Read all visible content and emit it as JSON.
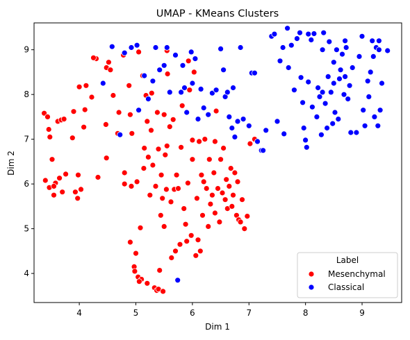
{
  "chart_data": {
    "type": "scatter",
    "title": "UMAP - KMeans Clusters",
    "xlabel": "Dim 1",
    "ylabel": "Dim 2",
    "xlim": [
      3.2,
      9.7
    ],
    "ylim": [
      3.35,
      9.6
    ],
    "xticks": [
      4,
      5,
      6,
      7,
      8,
      9
    ],
    "yticks": [
      4,
      5,
      6,
      7,
      8,
      9
    ],
    "grid": false,
    "legend": {
      "title": "Label",
      "placement": "lower-right"
    },
    "series": [
      {
        "name": "Mesenchymal",
        "color": "#ff0000",
        "points": [
          [
            3.38,
            7.58
          ],
          [
            3.44,
            7.5
          ],
          [
            3.46,
            7.22
          ],
          [
            3.48,
            7.05
          ],
          [
            3.4,
            6.08
          ],
          [
            3.47,
            5.92
          ],
          [
            3.52,
            6.55
          ],
          [
            3.55,
            5.75
          ],
          [
            3.58,
            6.02
          ],
          [
            3.55,
            5.95
          ],
          [
            3.62,
            7.4
          ],
          [
            3.68,
            7.43
          ],
          [
            3.73,
            7.45
          ],
          [
            3.65,
            6.13
          ],
          [
            3.7,
            5.82
          ],
          [
            3.76,
            6.22
          ],
          [
            3.88,
            7.03
          ],
          [
            3.9,
            7.62
          ],
          [
            3.93,
            5.82
          ],
          [
            3.97,
            5.68
          ],
          [
            3.98,
            6.2
          ],
          [
            4.0,
            8.17
          ],
          [
            4.03,
            5.88
          ],
          [
            4.08,
            7.27
          ],
          [
            4.1,
            7.66
          ],
          [
            4.12,
            8.2
          ],
          [
            4.22,
            7.94
          ],
          [
            4.3,
            8.8
          ],
          [
            4.33,
            6.15
          ],
          [
            4.47,
            7.33
          ],
          [
            4.48,
            6.58
          ],
          [
            4.48,
            8.6
          ],
          [
            4.52,
            8.72
          ],
          [
            4.55,
            8.55
          ],
          [
            4.6,
            7.98
          ],
          [
            4.68,
            7.13
          ],
          [
            4.7,
            7.6
          ],
          [
            4.78,
            8.88
          ],
          [
            4.8,
            6.25
          ],
          [
            4.88,
            8.2
          ],
          [
            4.9,
            7.55
          ],
          [
            4.92,
            5.95
          ],
          [
            4.93,
            7.13
          ],
          [
            4.97,
            4.15
          ],
          [
            4.98,
            4.05
          ],
          [
            5.0,
            4.45
          ],
          [
            5.02,
            6.05
          ],
          [
            5.04,
            3.92
          ],
          [
            5.08,
            5.02
          ],
          [
            5.1,
            3.87
          ],
          [
            5.12,
            8.42
          ],
          [
            5.14,
            6.35
          ],
          [
            5.15,
            6.8
          ],
          [
            5.18,
            7.98
          ],
          [
            5.2,
            7.4
          ],
          [
            5.2,
            3.78
          ],
          [
            5.22,
            6.6
          ],
          [
            5.25,
            5.75
          ],
          [
            5.27,
            7.2
          ],
          [
            5.28,
            8.03
          ],
          [
            5.3,
            6.42
          ],
          [
            5.33,
            3.68
          ],
          [
            5.35,
            5.95
          ],
          [
            5.37,
            3.62
          ],
          [
            5.38,
            7.6
          ],
          [
            5.4,
            6.78
          ],
          [
            5.4,
            3.65
          ],
          [
            5.42,
            4.07
          ],
          [
            5.44,
            5.3
          ],
          [
            5.45,
            6.2
          ],
          [
            5.47,
            5.68
          ],
          [
            5.48,
            3.6
          ],
          [
            5.5,
            7.55
          ],
          [
            5.5,
            5.05
          ],
          [
            5.52,
            6.65
          ],
          [
            5.54,
            5.88
          ],
          [
            5.55,
            6.85
          ],
          [
            5.56,
            8.46
          ],
          [
            5.6,
            7.28
          ],
          [
            5.62,
            5.6
          ],
          [
            5.63,
            4.35
          ],
          [
            5.66,
            7.44
          ],
          [
            5.68,
            5.88
          ],
          [
            5.7,
            4.5
          ],
          [
            5.72,
            6.2
          ],
          [
            5.75,
            5.9
          ],
          [
            5.78,
            4.65
          ],
          [
            5.8,
            6.82
          ],
          [
            5.82,
            7.75
          ],
          [
            5.85,
            5.45
          ],
          [
            5.88,
            5.1
          ],
          [
            5.9,
            4.72
          ],
          [
            5.92,
            6.02
          ],
          [
            5.95,
            8.1
          ],
          [
            5.98,
            4.85
          ],
          [
            6.0,
            6.55
          ],
          [
            6.03,
            8.5
          ],
          [
            6.06,
            4.4
          ],
          [
            6.08,
            5.68
          ],
          [
            6.1,
            4.75
          ],
          [
            6.12,
            6.95
          ],
          [
            6.14,
            4.5
          ],
          [
            6.16,
            6.2
          ],
          [
            6.18,
            5.3
          ],
          [
            6.2,
            6.05
          ],
          [
            6.22,
            7.0
          ],
          [
            6.25,
            5.9
          ],
          [
            6.28,
            5.05
          ],
          [
            6.3,
            6.55
          ],
          [
            6.32,
            5.55
          ],
          [
            6.35,
            5.75
          ],
          [
            6.38,
            6.25
          ],
          [
            6.4,
            5.35
          ],
          [
            6.42,
            7.63
          ],
          [
            6.45,
            5.9
          ],
          [
            6.48,
            5.15
          ],
          [
            6.5,
            6.55
          ],
          [
            6.53,
            5.8
          ],
          [
            6.55,
            6.8
          ],
          [
            6.58,
            5.65
          ],
          [
            6.6,
            6.1
          ],
          [
            6.62,
            5.45
          ],
          [
            6.65,
            5.95
          ],
          [
            6.68,
            6.35
          ],
          [
            6.7,
            5.5
          ],
          [
            6.72,
            5.75
          ],
          [
            6.75,
            6.25
          ],
          [
            6.78,
            5.3
          ],
          [
            6.8,
            6.05
          ],
          [
            6.82,
            5.2
          ],
          [
            6.85,
            5.15
          ],
          [
            6.88,
            5.65
          ],
          [
            6.92,
            5.0
          ],
          [
            6.97,
            5.28
          ],
          [
            7.02,
            6.9
          ],
          [
            7.1,
            7.0
          ],
          [
            4.9,
            4.7
          ],
          [
            5.06,
            3.82
          ],
          [
            4.8,
            6.0
          ],
          [
            6.4,
            6.95
          ],
          [
            5.93,
            8.75
          ],
          [
            4.25,
            8.82
          ],
          [
            5.55,
            8.98
          ],
          [
            5.05,
            8.95
          ],
          [
            6.0,
            6.98
          ]
        ]
      },
      {
        "name": "Classical",
        "color": "#0000ff",
        "points": [
          [
            4.42,
            8.25
          ],
          [
            4.58,
            9.07
          ],
          [
            4.72,
            7.1
          ],
          [
            4.8,
            8.93
          ],
          [
            4.92,
            9.05
          ],
          [
            5.02,
            9.1
          ],
          [
            5.05,
            7.65
          ],
          [
            5.15,
            8.42
          ],
          [
            5.22,
            7.9
          ],
          [
            5.3,
            8.3
          ],
          [
            5.35,
            9.05
          ],
          [
            5.42,
            8.55
          ],
          [
            5.5,
            8.65
          ],
          [
            5.55,
            9.05
          ],
          [
            5.6,
            8.05
          ],
          [
            5.7,
            8.88
          ],
          [
            5.74,
            3.85
          ],
          [
            5.8,
            8.05
          ],
          [
            5.83,
            8.65
          ],
          [
            5.86,
            8.15
          ],
          [
            5.9,
            7.6
          ],
          [
            5.98,
            8.95
          ],
          [
            6.0,
            8.25
          ],
          [
            6.05,
            8.8
          ],
          [
            6.1,
            7.45
          ],
          [
            6.15,
            8.12
          ],
          [
            6.2,
            7.7
          ],
          [
            6.28,
            7.55
          ],
          [
            6.35,
            8.03
          ],
          [
            6.42,
            8.1
          ],
          [
            6.5,
            9.02
          ],
          [
            6.55,
            8.55
          ],
          [
            6.58,
            7.95
          ],
          [
            6.62,
            8.05
          ],
          [
            6.65,
            7.5
          ],
          [
            6.7,
            7.25
          ],
          [
            6.72,
            8.15
          ],
          [
            6.75,
            7.05
          ],
          [
            6.8,
            7.4
          ],
          [
            6.85,
            9.05
          ],
          [
            6.9,
            7.45
          ],
          [
            7.0,
            7.3
          ],
          [
            7.05,
            8.48
          ],
          [
            7.15,
            6.95
          ],
          [
            7.22,
            6.75
          ],
          [
            7.3,
            7.2
          ],
          [
            7.4,
            9.3
          ],
          [
            7.45,
            9.35
          ],
          [
            7.5,
            7.4
          ],
          [
            7.55,
            8.75
          ],
          [
            7.6,
            9.05
          ],
          [
            7.62,
            7.12
          ],
          [
            7.68,
            9.48
          ],
          [
            7.7,
            8.6
          ],
          [
            7.75,
            9.1
          ],
          [
            7.8,
            8.1
          ],
          [
            7.85,
            9.25
          ],
          [
            7.9,
            9.38
          ],
          [
            7.92,
            8.38
          ],
          [
            7.95,
            7.82
          ],
          [
            7.97,
            7.25
          ],
          [
            8.0,
            6.98
          ],
          [
            8.02,
            6.82
          ],
          [
            8.05,
            8.28
          ],
          [
            8.1,
            9.22
          ],
          [
            8.12,
            7.72
          ],
          [
            8.15,
            9.36
          ],
          [
            8.2,
            7.5
          ],
          [
            8.22,
            8.15
          ],
          [
            8.25,
            7.95
          ],
          [
            8.28,
            7.1
          ],
          [
            8.3,
            9.0
          ],
          [
            8.32,
            9.38
          ],
          [
            8.35,
            7.8
          ],
          [
            8.38,
            7.25
          ],
          [
            8.4,
            8.4
          ],
          [
            8.42,
            9.18
          ],
          [
            8.45,
            8.05
          ],
          [
            8.48,
            7.35
          ],
          [
            8.5,
            8.72
          ],
          [
            8.52,
            7.6
          ],
          [
            8.55,
            9.0
          ],
          [
            8.58,
            7.45
          ],
          [
            8.6,
            8.35
          ],
          [
            8.62,
            8.55
          ],
          [
            8.65,
            8.9
          ],
          [
            8.68,
            8.0
          ],
          [
            8.7,
            8.4
          ],
          [
            8.72,
            9.05
          ],
          [
            8.75,
            7.9
          ],
          [
            8.78,
            8.2
          ],
          [
            8.8,
            7.15
          ],
          [
            8.83,
            8.6
          ],
          [
            8.9,
            7.15
          ],
          [
            8.95,
            8.85
          ],
          [
            9.0,
            9.3
          ],
          [
            9.02,
            7.65
          ],
          [
            9.05,
            7.3
          ],
          [
            9.1,
            8.3
          ],
          [
            9.12,
            7.95
          ],
          [
            9.15,
            8.5
          ],
          [
            9.18,
            9.2
          ],
          [
            9.2,
            8.85
          ],
          [
            9.22,
            7.5
          ],
          [
            9.25,
            9.05
          ],
          [
            9.28,
            7.3
          ],
          [
            9.3,
            9.2
          ],
          [
            9.32,
            7.65
          ],
          [
            9.35,
            8.25
          ],
          [
            9.45,
            8.98
          ],
          [
            7.25,
            6.75
          ],
          [
            8.5,
            8.25
          ],
          [
            7.1,
            8.48
          ],
          [
            8.3,
            8.05
          ],
          [
            8.05,
            9.35
          ],
          [
            8.7,
            9.2
          ],
          [
            9.3,
            9.0
          ]
        ]
      }
    ]
  }
}
